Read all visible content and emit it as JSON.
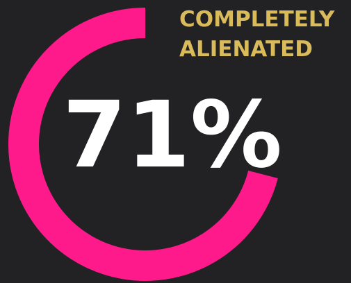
{
  "chart_data": {
    "type": "donut",
    "title_lines": [
      "COMPLETELY",
      "ALIENATED"
    ],
    "values": [
      71
    ],
    "value_labels": [
      "71%"
    ],
    "color": "#ff1a8c"
  }
}
